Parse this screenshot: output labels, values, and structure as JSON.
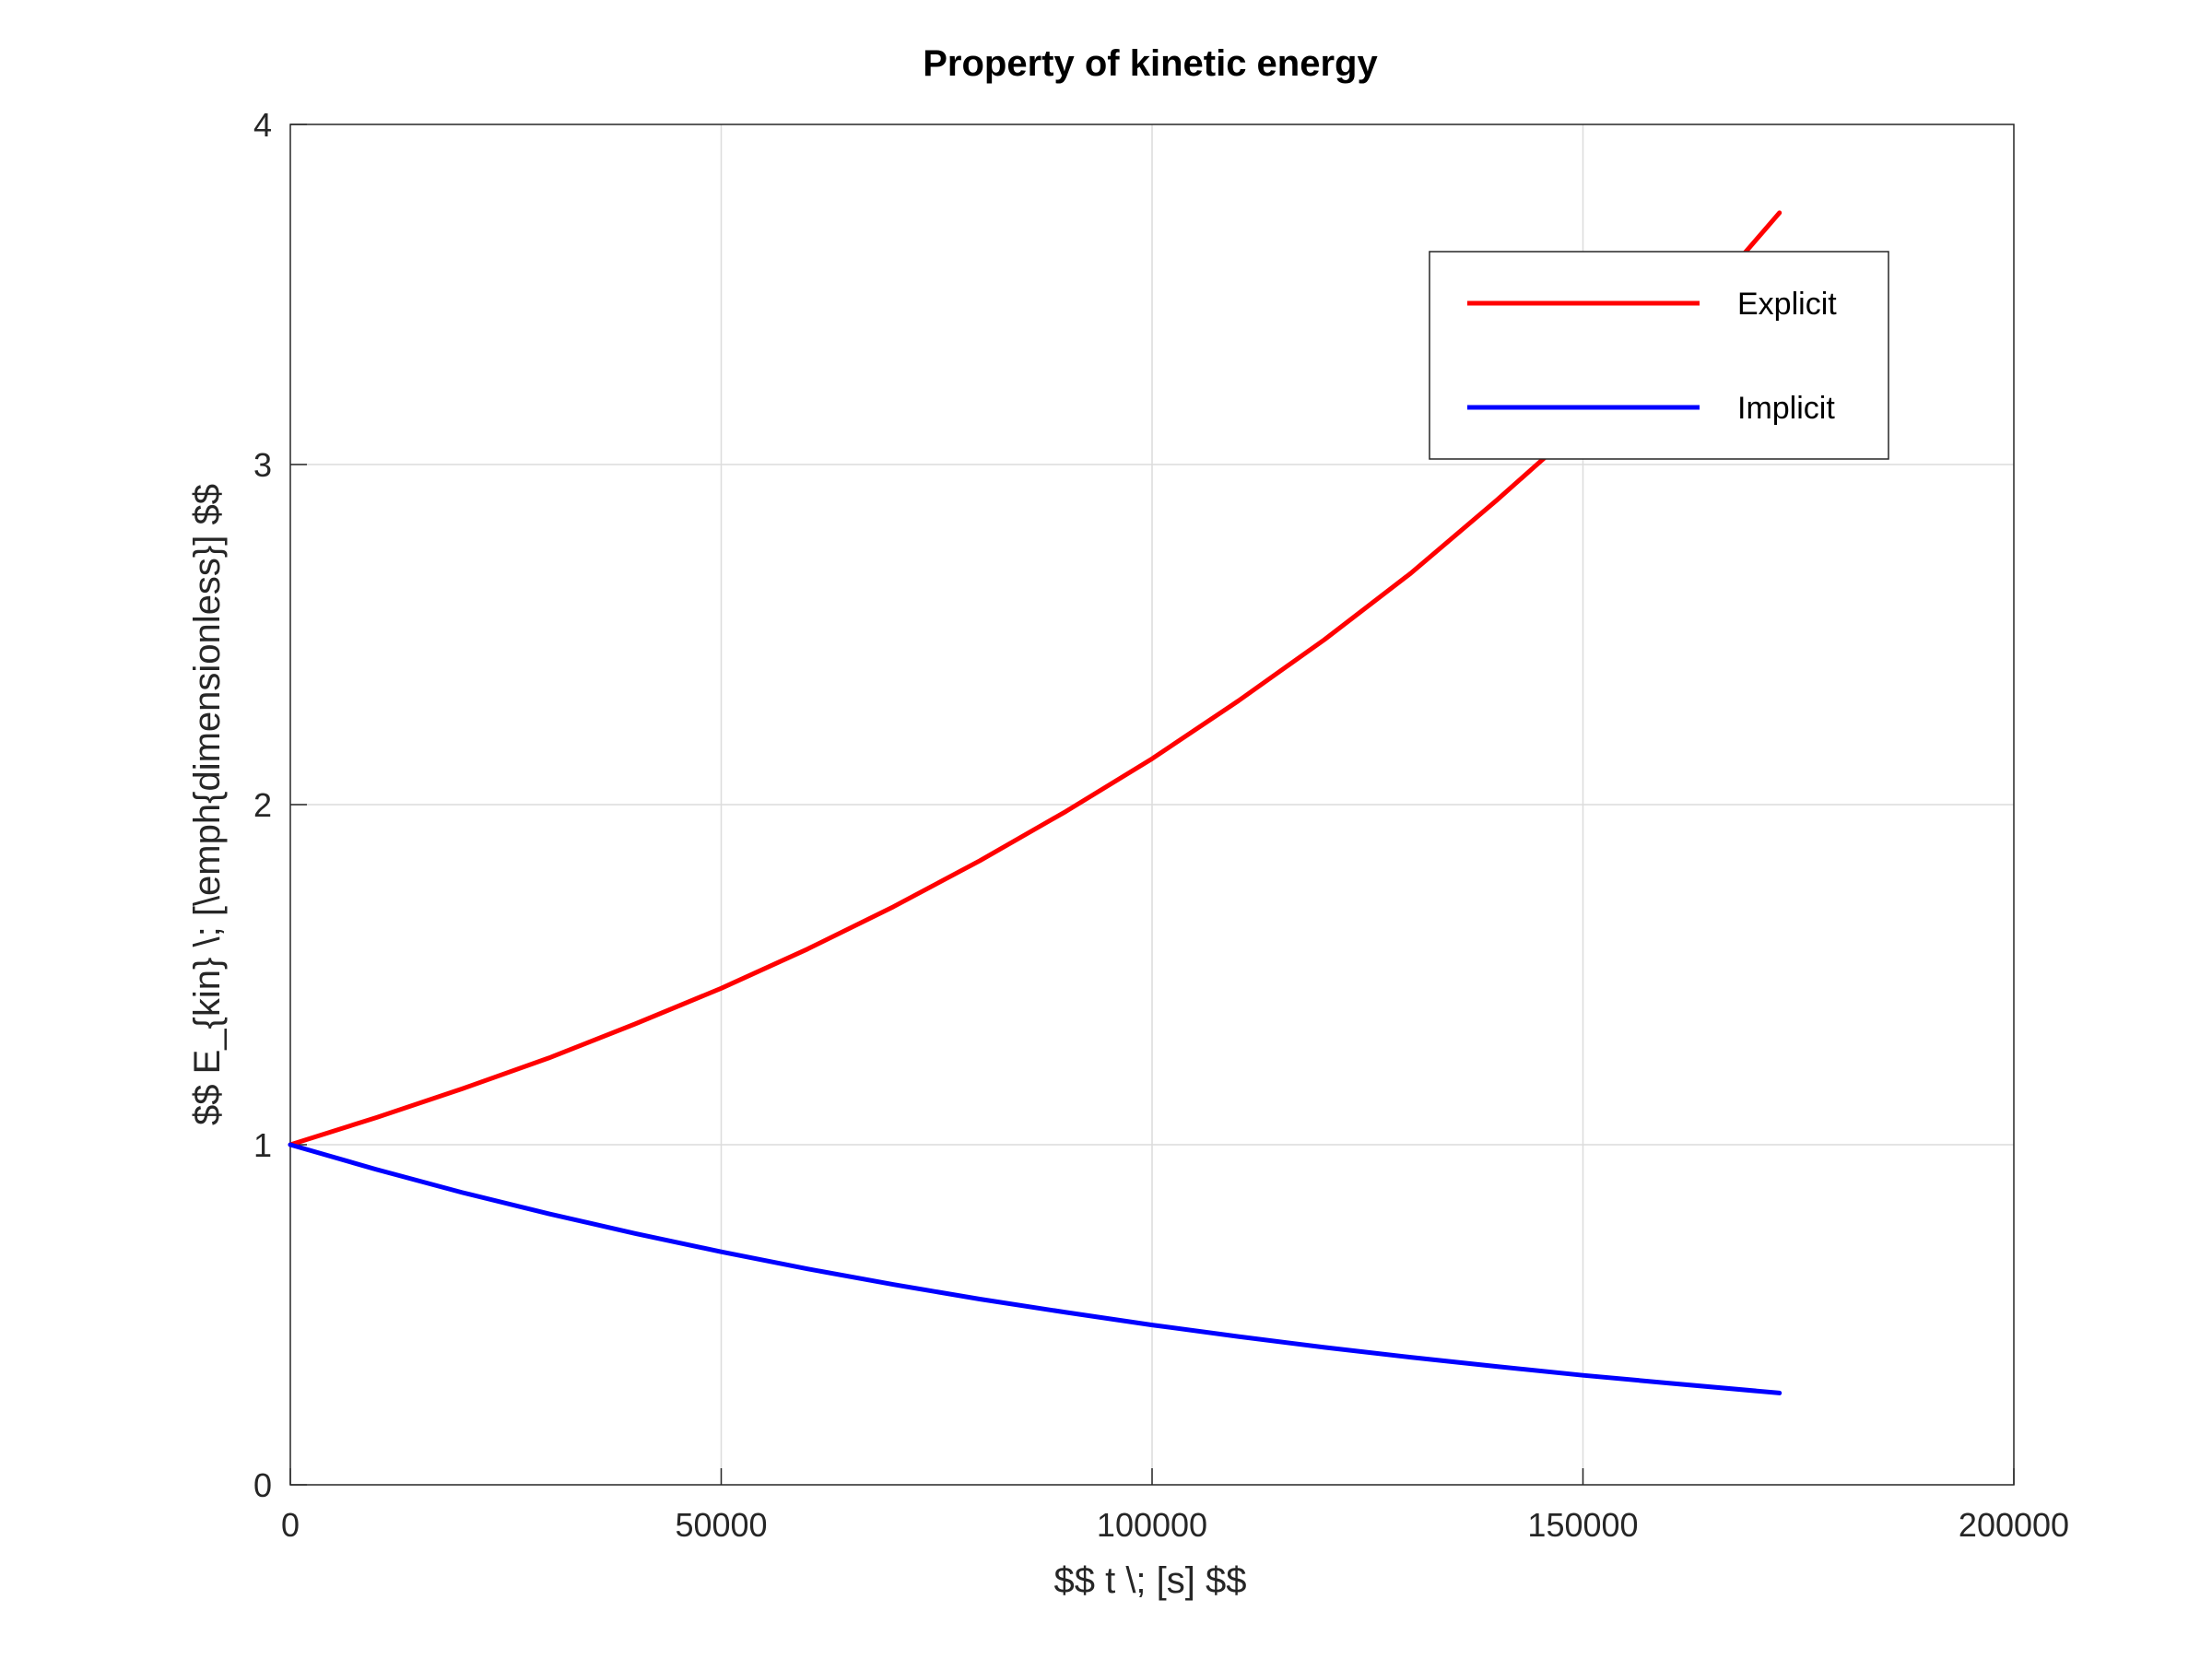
{
  "chart_data": {
    "type": "line",
    "title": "Property of kinetic energy",
    "xlabel": "$$ t \\; [s] $$",
    "ylabel": "$$ E_{kin} \\; [\\emph{dimensionless}] $$",
    "xlim": [
      0,
      200000
    ],
    "ylim": [
      0,
      4
    ],
    "xticks": [
      0,
      50000,
      100000,
      150000,
      200000
    ],
    "yticks": [
      0,
      1,
      2,
      3,
      4
    ],
    "xtick_labels": [
      "0",
      "50000",
      "100000",
      "150000",
      "200000"
    ],
    "ytick_labels": [
      "0",
      "1",
      "2",
      "3",
      "4"
    ],
    "grid": true,
    "legend_position": "top-right",
    "series": [
      {
        "name": "Explicit",
        "color": "#ff0000",
        "x": [
          0,
          10000,
          20000,
          30000,
          40000,
          50000,
          60000,
          70000,
          80000,
          90000,
          100000,
          110000,
          120000,
          130000,
          140000,
          150000,
          160000,
          172800
        ],
        "y": [
          1.0,
          1.08,
          1.165,
          1.255,
          1.355,
          1.46,
          1.575,
          1.7,
          1.835,
          1.98,
          2.135,
          2.305,
          2.485,
          2.68,
          2.895,
          3.12,
          3.365,
          3.74
        ]
      },
      {
        "name": "Implicit",
        "color": "#0000ff",
        "x": [
          0,
          10000,
          20000,
          30000,
          40000,
          50000,
          60000,
          70000,
          80000,
          90000,
          100000,
          110000,
          120000,
          130000,
          140000,
          150000,
          160000,
          172800
        ],
        "y": [
          1.0,
          0.927,
          0.859,
          0.797,
          0.739,
          0.685,
          0.635,
          0.589,
          0.546,
          0.507,
          0.47,
          0.436,
          0.404,
          0.375,
          0.348,
          0.322,
          0.299,
          0.27
        ]
      }
    ]
  }
}
